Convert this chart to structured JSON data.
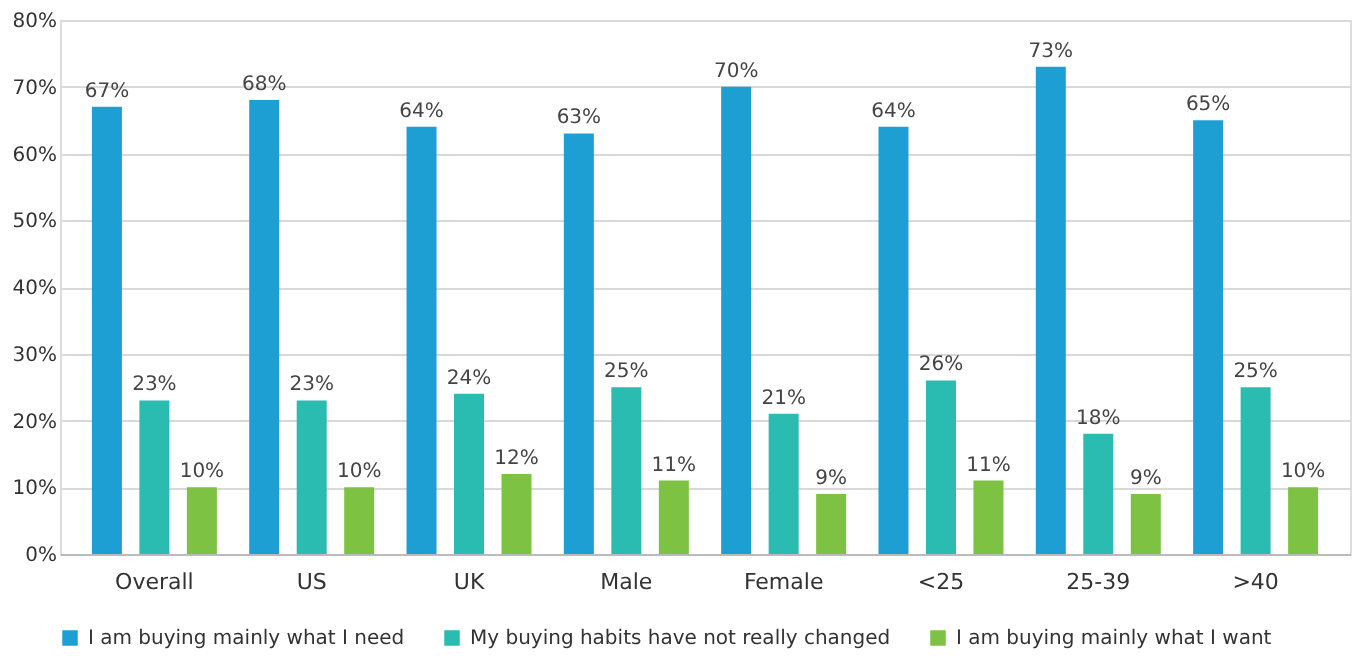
{
  "chart_data": {
    "type": "bar",
    "categories": [
      "Overall",
      "US",
      "UK",
      "Male",
      "Female",
      "<25",
      "25-39",
      ">40"
    ],
    "series": [
      {
        "name": "I am buying mainly what I need",
        "color": "#1e9fd4",
        "values": [
          67,
          68,
          64,
          63,
          70,
          64,
          73,
          65
        ],
        "value_labels": [
          "67%",
          "68%",
          "64%",
          "63%",
          "70%",
          "64%",
          "73%",
          "65%"
        ]
      },
      {
        "name": "My buying habits have not really changed",
        "color": "#2abcb0",
        "values": [
          23,
          23,
          24,
          25,
          21,
          26,
          18,
          25
        ],
        "value_labels": [
          "23%",
          "23%",
          "24%",
          "25%",
          "21%",
          "26%",
          "18%",
          "25%"
        ]
      },
      {
        "name": "I am buying mainly what I want",
        "color": "#7dc242",
        "values": [
          10,
          10,
          12,
          11,
          9,
          11,
          9,
          10
        ],
        "value_labels": [
          "10%",
          "10%",
          "12%",
          "11%",
          "9%",
          "11%",
          "9%",
          "10%"
        ]
      }
    ],
    "ylim": [
      0,
      80
    ],
    "yticks": [
      {
        "value": 0,
        "label": "0%"
      },
      {
        "value": 10,
        "label": "10%"
      },
      {
        "value": 20,
        "label": "20%"
      },
      {
        "value": 30,
        "label": "30%"
      },
      {
        "value": 40,
        "label": "40%"
      },
      {
        "value": 50,
        "label": "50%"
      },
      {
        "value": 60,
        "label": "60%"
      },
      {
        "value": 70,
        "label": "70%"
      },
      {
        "value": 80,
        "label": "80%"
      }
    ],
    "grid": "y",
    "legend": "bottom"
  }
}
